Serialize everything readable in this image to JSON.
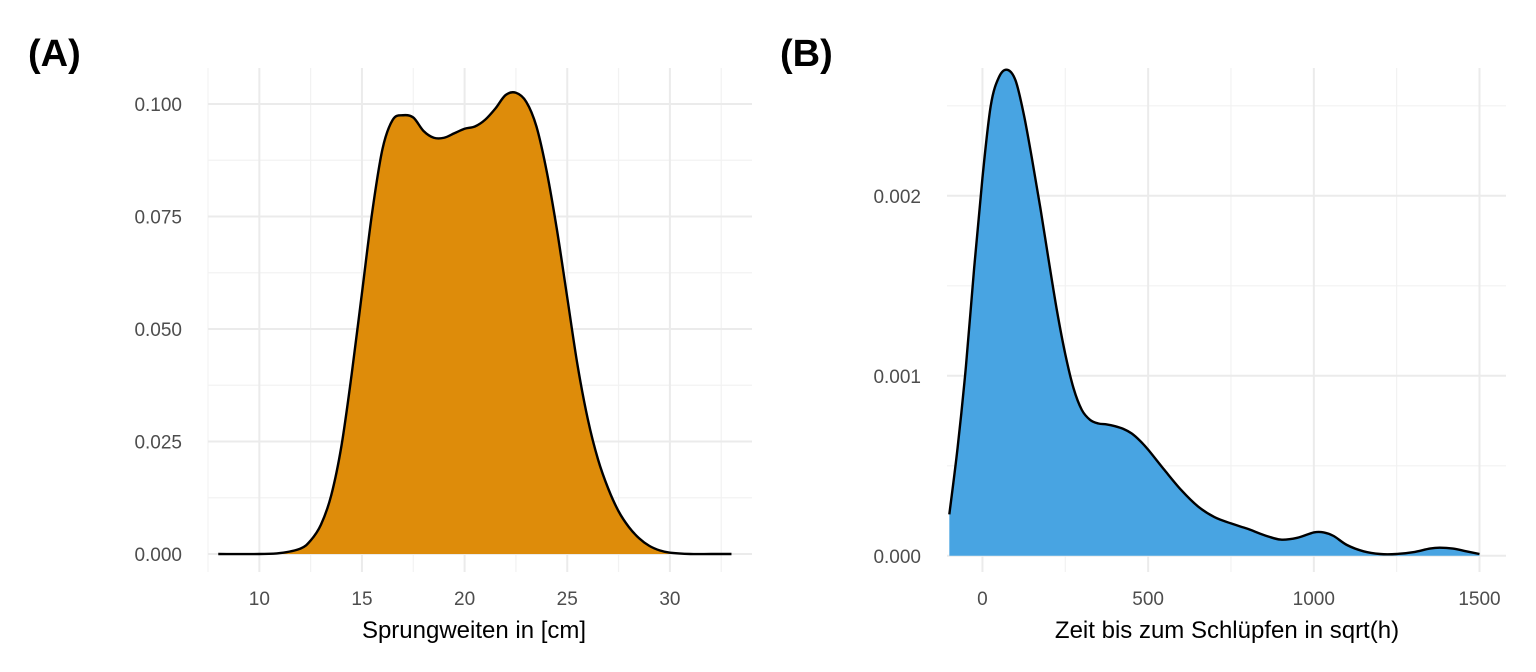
{
  "chart_data": [
    {
      "type": "area",
      "panel_label": "(A)",
      "xlabel": "Sprungweiten in [cm]",
      "ylabel": "",
      "xlim": [
        7.5,
        34
      ],
      "ylim": [
        -0.004,
        0.108
      ],
      "x_ticks": [
        10,
        15,
        20,
        25,
        30
      ],
      "x_tick_labels": [
        "10",
        "15",
        "20",
        "25",
        "30"
      ],
      "y_ticks": [
        0,
        0.025,
        0.05,
        0.075,
        0.1
      ],
      "y_tick_labels": [
        "0.000",
        "0.025",
        "0.050",
        "0.075",
        "0.100"
      ],
      "grid": true,
      "fill_color": "#DE8C0A",
      "x": [
        8,
        10,
        11,
        12,
        12.5,
        13,
        13.5,
        14,
        14.5,
        15,
        15.5,
        16,
        16.5,
        17,
        17.5,
        18,
        18.5,
        19,
        19.5,
        20,
        20.5,
        21,
        21.5,
        22,
        22.5,
        23,
        23.5,
        24,
        24.5,
        25,
        25.5,
        26,
        26.5,
        27,
        27.5,
        28,
        28.5,
        29,
        29.5,
        30,
        31,
        32,
        33
      ],
      "y": [
        0.0,
        0.0,
        0.0002,
        0.0012,
        0.003,
        0.0065,
        0.013,
        0.024,
        0.04,
        0.058,
        0.076,
        0.09,
        0.0965,
        0.0975,
        0.097,
        0.094,
        0.0925,
        0.0925,
        0.0935,
        0.0945,
        0.095,
        0.0965,
        0.099,
        0.102,
        0.1025,
        0.1005,
        0.095,
        0.085,
        0.072,
        0.057,
        0.042,
        0.03,
        0.021,
        0.0145,
        0.0095,
        0.006,
        0.0035,
        0.0018,
        0.0008,
        0.0003,
        0.0,
        0.0,
        0.0
      ]
    },
    {
      "type": "area",
      "panel_label": "(B)",
      "xlabel": "Zeit bis zum Schlüpfen in sqrt(h)",
      "ylabel": "",
      "xlim": [
        -107,
        1580
      ],
      "ylim": [
        -9e-05,
        0.00271
      ],
      "x_ticks": [
        0,
        500,
        1000,
        1500
      ],
      "x_tick_labels": [
        "0",
        "500",
        "1000",
        "1500"
      ],
      "y_ticks": [
        0,
        0.001,
        0.002
      ],
      "y_tick_labels": [
        "0.000",
        "0.001",
        "0.002"
      ],
      "grid": true,
      "fill_color": "#48A4E2",
      "x": [
        -100,
        -75,
        -50,
        -25,
        0,
        25,
        50,
        75,
        100,
        125,
        150,
        175,
        200,
        225,
        250,
        275,
        300,
        325,
        350,
        375,
        400,
        425,
        450,
        475,
        500,
        550,
        600,
        650,
        700,
        750,
        800,
        850,
        900,
        950,
        1000,
        1030,
        1060,
        1100,
        1150,
        1200,
        1250,
        1300,
        1350,
        1380,
        1420,
        1460,
        1500
      ],
      "y": [
        0.00023,
        0.0006,
        0.00105,
        0.0016,
        0.0021,
        0.0025,
        0.00266,
        0.0027,
        0.00264,
        0.00245,
        0.0022,
        0.00193,
        0.00164,
        0.00136,
        0.00112,
        0.00093,
        0.00081,
        0.000755,
        0.000735,
        0.00073,
        0.00072,
        0.000705,
        0.00068,
        0.00064,
        0.00059,
        0.000475,
        0.000365,
        0.000275,
        0.000215,
        0.00018,
        0.00015,
        0.000115,
        9e-05,
        0.0001,
        0.00013,
        0.00013,
        0.00011,
        6e-05,
        2.5e-05,
        1e-05,
        1e-05,
        2e-05,
        4e-05,
        4.5e-05,
        4e-05,
        2.5e-05,
        1e-05
      ]
    }
  ]
}
